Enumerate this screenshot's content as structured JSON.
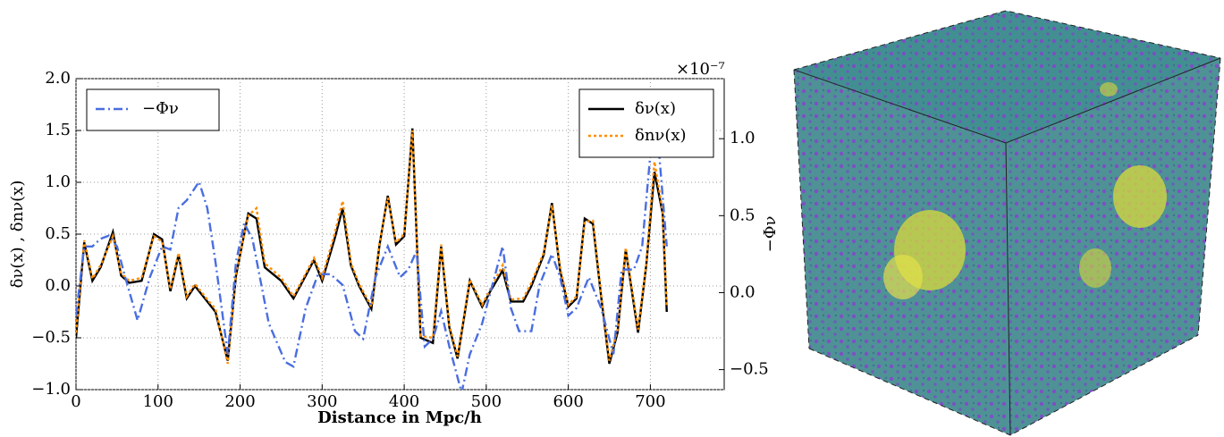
{
  "chart_data": {
    "type": "line",
    "xlabel": "Distance in Mpc/h",
    "ylabel": "δν(x) , δnν(x)",
    "y2label": "−Φν",
    "y2_multiplier": "×10⁻⁷",
    "xlim": [
      0,
      790
    ],
    "xticks": [
      0,
      100,
      200,
      300,
      400,
      500,
      600,
      700
    ],
    "ylim": [
      -1.0,
      2.0
    ],
    "yticks": [
      {
        "value": -1.0,
        "label": "−1.0"
      },
      {
        "value": -0.5,
        "label": "−0.5"
      },
      {
        "value": 0.0,
        "label": "0.0"
      },
      0.5,
      {
        "value": 1.0,
        "label": "1.0"
      },
      1.5,
      {
        "value": 2.0,
        "label": "2.0"
      }
    ],
    "y2lim": [
      -0.63,
      1.39
    ],
    "y2ticks": [
      {
        "value": -0.5,
        "label": "−0.5"
      },
      {
        "value": 0.0,
        "label": "0.0"
      },
      0.5,
      {
        "value": 1.0,
        "label": "1.0"
      }
    ],
    "y2color": "#4a6ee0",
    "grid": true,
    "series": [
      {
        "name": "δν(x)",
        "color": "#000000",
        "dash": "solid",
        "legend": "upper right",
        "x": [
          0,
          10,
          20,
          30,
          45,
          55,
          65,
          80,
          95,
          105,
          115,
          125,
          135,
          145,
          160,
          170,
          185,
          195,
          210,
          220,
          230,
          250,
          265,
          280,
          290,
          300,
          315,
          325,
          335,
          345,
          360,
          370,
          380,
          390,
          400,
          410,
          420,
          435,
          445,
          455,
          465,
          475,
          480,
          495,
          505,
          520,
          530,
          545,
          555,
          570,
          580,
          590,
          600,
          610,
          620,
          630,
          640,
          650,
          660,
          670,
          685,
          695,
          705,
          715,
          720
        ],
        "values": [
          -0.5,
          0.42,
          0.05,
          0.18,
          0.52,
          0.1,
          0.03,
          0.05,
          0.5,
          0.45,
          -0.05,
          0.3,
          -0.12,
          0.0,
          -0.15,
          -0.25,
          -0.72,
          0.1,
          0.7,
          0.65,
          0.18,
          0.05,
          -0.12,
          0.1,
          0.25,
          0.05,
          0.45,
          0.75,
          0.2,
          0.0,
          -0.22,
          0.4,
          0.87,
          0.4,
          0.48,
          1.52,
          -0.5,
          -0.55,
          0.38,
          -0.4,
          -0.7,
          -0.2,
          0.05,
          -0.2,
          -0.05,
          0.15,
          -0.15,
          -0.15,
          0.0,
          0.3,
          0.8,
          0.15,
          -0.2,
          -0.12,
          0.65,
          0.6,
          -0.1,
          -0.75,
          -0.45,
          0.35,
          -0.45,
          0.2,
          1.1,
          0.7,
          -0.25
        ]
      },
      {
        "name": "δnν(x)",
        "color": "#ff8c00",
        "dash": "dot",
        "legend": "upper right",
        "x": [
          0,
          10,
          20,
          30,
          45,
          55,
          65,
          80,
          95,
          105,
          115,
          125,
          135,
          145,
          160,
          170,
          185,
          195,
          210,
          220,
          230,
          250,
          265,
          280,
          290,
          300,
          315,
          325,
          335,
          345,
          360,
          370,
          380,
          390,
          400,
          410,
          420,
          435,
          445,
          455,
          465,
          475,
          480,
          495,
          505,
          520,
          530,
          545,
          555,
          570,
          580,
          590,
          600,
          610,
          620,
          630,
          640,
          650,
          660,
          670,
          685,
          695,
          705,
          715,
          720
        ],
        "values": [
          -0.45,
          0.44,
          0.07,
          0.2,
          0.48,
          0.12,
          0.05,
          0.08,
          0.48,
          0.43,
          -0.03,
          0.32,
          -0.1,
          0.02,
          -0.13,
          -0.22,
          -0.75,
          0.12,
          0.68,
          0.75,
          0.22,
          0.08,
          -0.1,
          0.12,
          0.27,
          0.08,
          0.5,
          0.82,
          0.22,
          0.02,
          -0.2,
          0.42,
          0.85,
          0.42,
          0.5,
          1.5,
          -0.48,
          -0.5,
          0.4,
          -0.38,
          -0.68,
          -0.18,
          0.06,
          -0.18,
          -0.03,
          0.2,
          -0.13,
          -0.12,
          0.03,
          0.32,
          0.78,
          0.18,
          -0.18,
          -0.1,
          0.62,
          0.63,
          -0.08,
          -0.72,
          -0.42,
          0.37,
          -0.42,
          0.22,
          1.2,
          0.72,
          -0.2
        ]
      },
      {
        "name": "−Φν",
        "color": "#4a6ee0",
        "dash": "dashdot",
        "legend": "upper left",
        "axis": "y2",
        "x": [
          0,
          10,
          20,
          30,
          40,
          50,
          60,
          75,
          90,
          105,
          115,
          125,
          135,
          150,
          160,
          170,
          185,
          195,
          205,
          215,
          235,
          255,
          265,
          280,
          295,
          310,
          325,
          340,
          350,
          365,
          380,
          395,
          405,
          415,
          425,
          435,
          445,
          455,
          470,
          480,
          495,
          505,
          520,
          530,
          540,
          555,
          565,
          580,
          590,
          600,
          610,
          625,
          640,
          655,
          665,
          680,
          690,
          700,
          710,
          720
        ],
        "values": [
          -0.15,
          0.3,
          0.3,
          0.35,
          0.37,
          0.3,
          0.1,
          -0.18,
          0.1,
          0.3,
          0.28,
          0.55,
          0.6,
          0.72,
          0.55,
          0.2,
          -0.4,
          0.2,
          0.45,
          0.35,
          -0.2,
          -0.45,
          -0.48,
          -0.1,
          0.12,
          0.12,
          0.05,
          -0.25,
          -0.3,
          0.1,
          0.3,
          0.1,
          0.15,
          0.27,
          -0.35,
          -0.3,
          -0.12,
          -0.35,
          -0.65,
          -0.4,
          -0.2,
          0.0,
          0.3,
          -0.1,
          -0.25,
          -0.25,
          0.05,
          0.25,
          0.1,
          -0.15,
          -0.1,
          0.1,
          -0.1,
          -0.4,
          0.15,
          0.15,
          0.3,
          0.9,
          0.95,
          0.3
        ]
      }
    ]
  }
}
